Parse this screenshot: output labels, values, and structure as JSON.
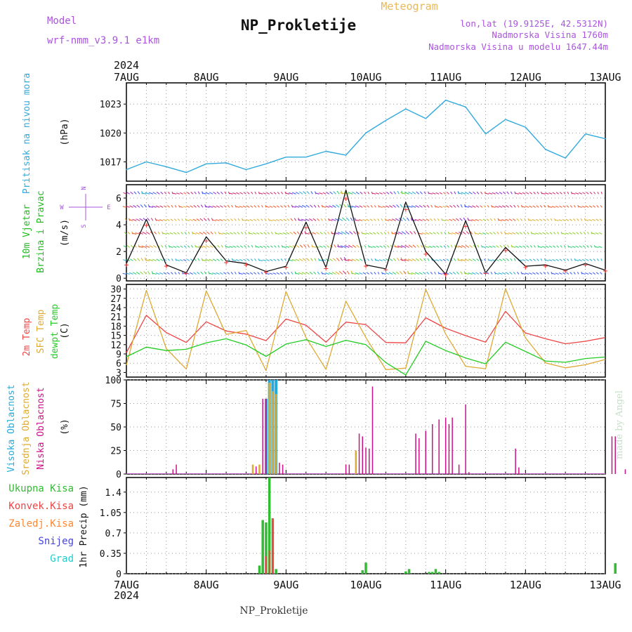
{
  "header": {
    "model_label": "Model",
    "model_name": "wrf-nmm_v3.9.1  e1km",
    "title": "NP_Prokletije",
    "meteogram_label": "Meteogram",
    "lonlat": "lon,lat (19.9125E, 42.5312N)",
    "altitude": "Nadmorska Visina 1760m",
    "model_altitude": "Nadmorska Visina u modelu 1647.44m",
    "footer_name": "NP_Prokletije",
    "made_by": "made by Angel"
  },
  "colors": {
    "pressure": "#33aadd",
    "wind_label": "#22bb22",
    "arrows_label": "#aa55dd",
    "t2m": "#ee4444",
    "sfc": "#ddaa33",
    "dewpt": "#22cc22",
    "high_cloud": "#22aadd",
    "mid_cloud": "#ddaa33",
    "low_cloud": "#cc1188",
    "precip_total": "#33bb33",
    "precip_conv": "#ee4444",
    "precip_frozen": "#ff8833",
    "snow": "#4444dd",
    "hail": "#22cccc"
  },
  "time_axis": {
    "year": "2024",
    "days": [
      "7AUG",
      "8AUG",
      "9AUG",
      "10AUG",
      "11AUG",
      "12AUG",
      "13AUG"
    ]
  },
  "wind_direction_legend": {
    "north": "N",
    "south": "S",
    "west": "W",
    "east": "E"
  },
  "chart_data": [
    {
      "type": "line",
      "panel": "pressure",
      "ylabel": "Pritisak na nivou mora",
      "unit": "(hPa)",
      "yticks": [
        "1023",
        "1020",
        "1017"
      ],
      "ylim": [
        1015,
        1025.2
      ],
      "x_hours": [
        0,
        6,
        12,
        18,
        24,
        30,
        36,
        42,
        48,
        54,
        60,
        66,
        72,
        78,
        84,
        90,
        96,
        102,
        108,
        114,
        120,
        126,
        132,
        138,
        144
      ],
      "values": [
        1016.2,
        1017.0,
        1016.5,
        1015.9,
        1016.8,
        1016.9,
        1016.2,
        1016.8,
        1017.5,
        1017.5,
        1018.1,
        1017.7,
        1020.0,
        1021.3,
        1022.5,
        1021.5,
        1023.4,
        1022.7,
        1019.9,
        1021.4,
        1020.6,
        1018.3,
        1017.4,
        1019.9,
        1019.4
      ]
    },
    {
      "type": "line",
      "panel": "wind",
      "ylabel": [
        "10m Vjetar",
        "Brzina i Pravac"
      ],
      "unit": "(m/s)",
      "yticks": [
        "6",
        "4",
        "2",
        "0"
      ],
      "ylim": [
        -0.2,
        7.0
      ],
      "x_hours": [
        0,
        6,
        12,
        18,
        24,
        30,
        36,
        42,
        48,
        54,
        60,
        66,
        72,
        78,
        84,
        90,
        96,
        102,
        108,
        114,
        120,
        126,
        132,
        138,
        144
      ],
      "values": [
        1.1,
        4.4,
        1.0,
        0.4,
        3.1,
        1.3,
        1.1,
        0.5,
        0.9,
        4.2,
        0.8,
        6.6,
        1.0,
        0.7,
        5.7,
        2.0,
        0.3,
        4.3,
        0.4,
        2.3,
        0.9,
        1.0,
        0.6,
        1.1,
        0.6
      ]
    },
    {
      "type": "line",
      "panel": "temperature",
      "ylabel": [
        "2m Temp",
        "SFC Temp",
        "dewpt Temp"
      ],
      "unit": "(C)",
      "yticks": [
        "30",
        "27",
        "24",
        "21",
        "18",
        "15",
        "12",
        "9",
        "6",
        "3"
      ],
      "ylim": [
        1.5,
        31.5
      ],
      "x_hours": [
        0,
        6,
        12,
        18,
        24,
        30,
        36,
        42,
        48,
        54,
        60,
        66,
        72,
        78,
        84,
        90,
        96,
        102,
        108,
        114,
        120,
        126,
        132,
        138,
        144
      ],
      "series": [
        {
          "name": "2m Temp",
          "values": [
            9.4,
            21.5,
            15.9,
            12.7,
            19.4,
            16.4,
            15.4,
            13.3,
            20.3,
            18.3,
            12.8,
            19.3,
            18.5,
            12.7,
            12.6,
            20.7,
            17.3,
            14.9,
            12.8,
            22.8,
            15.8,
            13.9,
            12.3,
            13.1,
            14.3
          ]
        },
        {
          "name": "SFC Temp",
          "values": [
            5.4,
            29.6,
            10.7,
            4.1,
            29.4,
            15.3,
            16.6,
            3.6,
            29.2,
            14.3,
            4.0,
            26.1,
            14.3,
            3.9,
            4.4,
            29.9,
            15.4,
            5.0,
            4.2,
            30.1,
            14.2,
            6.1,
            4.5,
            5.5,
            7.2
          ]
        },
        {
          "name": "dewpt Temp",
          "values": [
            8.1,
            11.2,
            10.1,
            10.5,
            12.6,
            13.9,
            11.9,
            8.2,
            12.2,
            13.6,
            11.4,
            13.4,
            12.0,
            6.2,
            2.2,
            13.1,
            10.1,
            7.7,
            5.8,
            12.8,
            9.8,
            6.7,
            6.3,
            7.5,
            8.0
          ]
        }
      ]
    },
    {
      "type": "bar",
      "panel": "cloud",
      "ylabel": [
        "Visoka Oblacnost",
        "Srednja Oblacnost",
        "Niska Oblacnost"
      ],
      "unit": "(%)",
      "yticks": [
        "100",
        "75",
        "50",
        "25",
        "0"
      ],
      "ylim": [
        0,
        100
      ],
      "series": [
        {
          "name": "Visoka Oblacnost",
          "x_hours": [
            42,
            43,
            44,
            45,
            48
          ],
          "values": [
            80,
            100,
            100,
            100,
            0
          ]
        },
        {
          "name": "Srednja Oblacnost",
          "x_hours": [
            38,
            40,
            43,
            44,
            45,
            69
          ],
          "values": [
            10,
            10,
            97,
            88,
            85,
            25
          ]
        },
        {
          "name": "Niska Oblacnost",
          "x_hours": [
            14,
            15,
            39,
            41,
            42,
            46,
            47,
            66,
            67,
            70,
            71,
            72,
            73,
            74,
            87,
            88,
            90,
            92,
            94,
            96,
            97,
            98,
            100,
            102,
            103,
            117,
            118,
            146,
            147,
            150
          ],
          "values": [
            5,
            10,
            8,
            80,
            80,
            12,
            10,
            10,
            10,
            43,
            40,
            28,
            27,
            93,
            43,
            38,
            46,
            53,
            58,
            60,
            53,
            60,
            10,
            74,
            2,
            27,
            7,
            40,
            40,
            5
          ]
        }
      ]
    },
    {
      "type": "bar",
      "panel": "precip",
      "ylabel": "1hr Precip (mm)",
      "legend": [
        "Ukupna Kisa",
        "Konvek.Kisa",
        "Zaledj.Kisa",
        "Snijeg",
        "Grad"
      ],
      "yticks": [
        "1.4",
        "1.05",
        "0.7",
        "0.35",
        "0"
      ],
      "ylim": [
        0,
        1.65
      ],
      "series": [
        {
          "name": "Ukupna Kisa",
          "x_hours": [
            40,
            41,
            42,
            43,
            44,
            45,
            46,
            71,
            72,
            73,
            84,
            85,
            91,
            92,
            93,
            94,
            95,
            147
          ],
          "values": [
            0.14,
            0.92,
            0.88,
            1.65,
            0.95,
            0.08,
            0.0,
            0.06,
            0.19,
            0.0,
            0.04,
            0.08,
            0.03,
            0.03,
            0.08,
            0.03,
            0.0,
            0.18
          ]
        },
        {
          "name": "Konvek.Kisa",
          "x_hours": [
            42,
            43,
            44
          ],
          "values": [
            0.3,
            0.4,
            0.95
          ]
        }
      ]
    }
  ]
}
